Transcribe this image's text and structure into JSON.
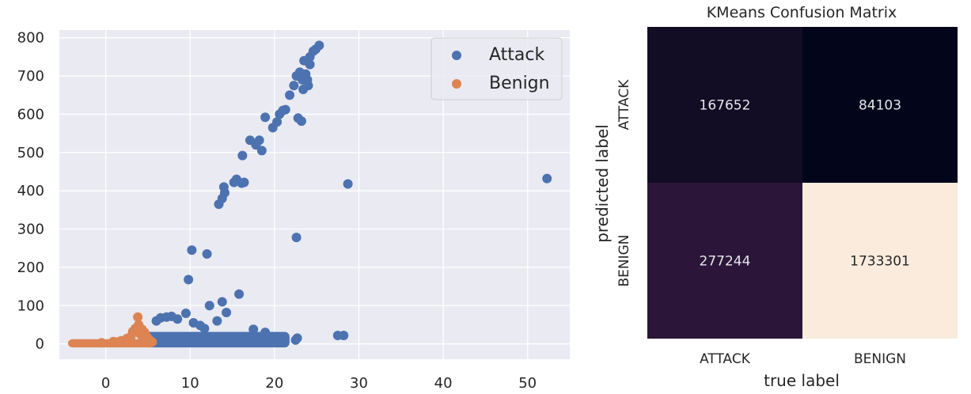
{
  "chart_data": [
    {
      "type": "scatter",
      "xlim": [
        -5.5,
        55
      ],
      "ylim": [
        -40,
        820
      ],
      "xticks": [
        0,
        10,
        20,
        30,
        40,
        50
      ],
      "yticks": [
        0,
        100,
        200,
        300,
        400,
        500,
        600,
        700,
        800
      ],
      "grid": true,
      "background": "#eaeaf2",
      "legend": {
        "placement": "top-right",
        "entries": [
          "Attack",
          "Benign"
        ]
      },
      "series": [
        {
          "name": "Attack",
          "color": "#4c72b0",
          "points": [
            [
              52.3,
              432
            ],
            [
              28.7,
              418
            ],
            [
              22.6,
              278
            ],
            [
              27.5,
              22
            ],
            [
              28.2,
              22
            ],
            [
              10.2,
              245
            ],
            [
              12.0,
              235
            ],
            [
              9.8,
              168
            ],
            [
              15.8,
              130
            ],
            [
              12.3,
              100
            ],
            [
              13.8,
              110
            ],
            [
              14.3,
              82
            ],
            [
              9.5,
              80
            ],
            [
              13.2,
              60
            ],
            [
              11.7,
              40
            ],
            [
              17.5,
              38
            ],
            [
              18.9,
              30
            ],
            [
              19.2,
              18
            ],
            [
              22.7,
              15
            ],
            [
              22.5,
              10
            ],
            [
              13.4,
              365
            ],
            [
              13.8,
              380
            ],
            [
              14.1,
              395
            ],
            [
              14.0,
              410
            ],
            [
              15.2,
              422
            ],
            [
              15.5,
              430
            ],
            [
              16.1,
              420
            ],
            [
              16.4,
              422
            ],
            [
              16.2,
              492
            ],
            [
              17.1,
              532
            ],
            [
              17.8,
              520
            ],
            [
              18.2,
              532
            ],
            [
              18.5,
              505
            ],
            [
              18.9,
              592
            ],
            [
              19.8,
              565
            ],
            [
              20.3,
              580
            ],
            [
              20.6,
              600
            ],
            [
              21.0,
              610
            ],
            [
              21.3,
              612
            ],
            [
              21.8,
              650
            ],
            [
              22.3,
              675
            ],
            [
              22.6,
              700
            ],
            [
              22.8,
              590
            ],
            [
              23.2,
              582
            ],
            [
              23.0,
              710
            ],
            [
              23.3,
              690
            ],
            [
              23.4,
              665
            ],
            [
              23.5,
              740
            ],
            [
              23.7,
              705
            ],
            [
              23.9,
              690
            ],
            [
              24.0,
              675
            ],
            [
              24.2,
              750
            ],
            [
              24.6,
              765
            ],
            [
              24.9,
              770
            ],
            [
              25.3,
              780
            ],
            [
              24.2,
              730
            ],
            [
              6.0,
              60
            ],
            [
              6.5,
              68
            ],
            [
              7.2,
              70
            ],
            [
              7.8,
              72
            ],
            [
              8.5,
              65
            ],
            [
              10.4,
              55
            ],
            [
              11.2,
              48
            ]
          ],
          "cluster_region": {
            "x": [
              5.0,
              21.5
            ],
            "y": [
              -3,
              25
            ]
          }
        },
        {
          "name": "Benign",
          "color": "#dd8452",
          "points": [
            [
              3.8,
              70
            ],
            [
              3.9,
              50
            ],
            [
              3.5,
              40
            ],
            [
              3.2,
              32
            ],
            [
              4.3,
              38
            ],
            [
              4.6,
              30
            ],
            [
              4.1,
              25
            ],
            [
              3.0,
              20
            ],
            [
              2.5,
              14
            ],
            [
              4.9,
              18
            ],
            [
              5.2,
              10
            ],
            [
              1.8,
              8
            ],
            [
              0.9,
              6
            ],
            [
              -0.5,
              3
            ],
            [
              1.2,
              5
            ],
            [
              2.2,
              6
            ],
            [
              5.5,
              5
            ],
            [
              4.4,
              12
            ]
          ],
          "cluster_region": {
            "x": [
              -4.2,
              5.6
            ],
            "y": [
              -3,
              6
            ]
          }
        }
      ]
    },
    {
      "type": "heatmap",
      "title": "KMeans Confusion Matrix",
      "xlabel": "true label",
      "ylabel": "predicted label",
      "x_categories": [
        "ATTACK",
        "BENIGN"
      ],
      "y_categories": [
        "ATTACK",
        "BENIGN"
      ],
      "values": [
        [
          167652,
          84103
        ],
        [
          277244,
          1733301
        ]
      ],
      "cell_colors": [
        [
          "#120c24",
          "#03051a"
        ],
        [
          "#2b1639",
          "#faebdd"
        ]
      ],
      "text_color": "#e6e6ea"
    }
  ]
}
